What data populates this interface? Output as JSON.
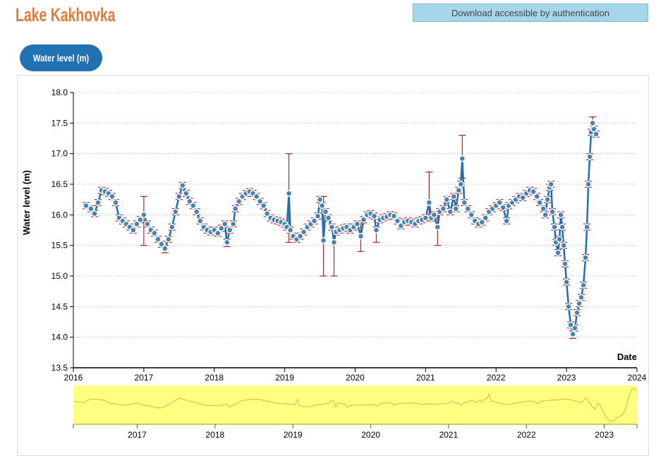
{
  "header": {
    "title": "Lake Kakhovka",
    "download_label": "Download accessible by authentication"
  },
  "tabs": [
    {
      "label": "Water level (m)",
      "active": true
    }
  ],
  "colors": {
    "title": "#e07b39",
    "point": "#4682b4",
    "line": "#1f6fb2",
    "error": "#b22222",
    "context_bg": "#ffff80",
    "context_line": "#c8c85a"
  },
  "chart_data": {
    "type": "line",
    "xlabel": "Date",
    "ylabel": "Water level (m)",
    "xlim": [
      2016,
      2024
    ],
    "ylim": [
      13.5,
      18.0
    ],
    "yticks": [
      "13.5",
      "14.0",
      "14.5",
      "15.0",
      "15.5",
      "16.0",
      "16.5",
      "17.0",
      "17.5",
      "18.0"
    ],
    "xticks": [
      "2016",
      "2017",
      "2018",
      "2019",
      "2020",
      "2021",
      "2022",
      "2023",
      "2024"
    ],
    "context_xlim": [
      2016.18,
      2023.42
    ],
    "context_xticks": [
      "2017",
      "2018",
      "2019",
      "2020",
      "2021",
      "2022",
      "2023"
    ],
    "grid": true,
    "points": [
      [
        2016.18,
        16.15
      ],
      [
        2016.25,
        16.1
      ],
      [
        2016.3,
        16.02
      ],
      [
        2016.35,
        16.2
      ],
      [
        2016.4,
        16.4
      ],
      [
        2016.45,
        16.38
      ],
      [
        2016.5,
        16.35
      ],
      [
        2016.55,
        16.3
      ],
      [
        2016.6,
        16.2
      ],
      [
        2016.65,
        15.95
      ],
      [
        2016.7,
        15.9
      ],
      [
        2016.75,
        15.85
      ],
      [
        2016.8,
        15.8
      ],
      [
        2016.85,
        15.75
      ],
      [
        2016.9,
        15.85
      ],
      [
        2016.95,
        15.92
      ],
      [
        2017.0,
        16.0
      ],
      [
        2017.05,
        15.85
      ],
      [
        2017.1,
        15.75
      ],
      [
        2017.15,
        15.7
      ],
      [
        2017.2,
        15.6
      ],
      [
        2017.25,
        15.52
      ],
      [
        2017.3,
        15.45
      ],
      [
        2017.35,
        15.6
      ],
      [
        2017.4,
        15.8
      ],
      [
        2017.45,
        16.05
      ],
      [
        2017.5,
        16.3
      ],
      [
        2017.55,
        16.48
      ],
      [
        2017.6,
        16.35
      ],
      [
        2017.65,
        16.22
      ],
      [
        2017.7,
        16.15
      ],
      [
        2017.75,
        16.05
      ],
      [
        2017.8,
        15.9
      ],
      [
        2017.85,
        15.8
      ],
      [
        2017.9,
        15.75
      ],
      [
        2017.95,
        15.72
      ],
      [
        2018.0,
        15.75
      ],
      [
        2018.05,
        15.7
      ],
      [
        2018.1,
        15.78
      ],
      [
        2018.15,
        15.85
      ],
      [
        2018.18,
        15.55
      ],
      [
        2018.22,
        15.75
      ],
      [
        2018.27,
        15.85
      ],
      [
        2018.3,
        16.1
      ],
      [
        2018.35,
        16.22
      ],
      [
        2018.4,
        16.3
      ],
      [
        2018.45,
        16.35
      ],
      [
        2018.5,
        16.38
      ],
      [
        2018.55,
        16.35
      ],
      [
        2018.6,
        16.3
      ],
      [
        2018.65,
        16.22
      ],
      [
        2018.7,
        16.15
      ],
      [
        2018.75,
        16.02
      ],
      [
        2018.8,
        15.95
      ],
      [
        2018.85,
        15.92
      ],
      [
        2018.9,
        15.9
      ],
      [
        2018.95,
        15.88
      ],
      [
        2019.0,
        15.85
      ],
      [
        2019.03,
        15.8
      ],
      [
        2019.06,
        16.35
      ],
      [
        2019.08,
        15.75
      ],
      [
        2019.12,
        15.65
      ],
      [
        2019.17,
        15.6
      ],
      [
        2019.22,
        15.65
      ],
      [
        2019.27,
        15.72
      ],
      [
        2019.32,
        15.8
      ],
      [
        2019.37,
        15.85
      ],
      [
        2019.42,
        15.9
      ],
      [
        2019.47,
        15.98
      ],
      [
        2019.5,
        16.25
      ],
      [
        2019.53,
        16.15
      ],
      [
        2019.55,
        15.58
      ],
      [
        2019.58,
        16.05
      ],
      [
        2019.62,
        15.95
      ],
      [
        2019.67,
        15.8
      ],
      [
        2019.7,
        15.55
      ],
      [
        2019.73,
        15.72
      ],
      [
        2019.78,
        15.75
      ],
      [
        2019.83,
        15.78
      ],
      [
        2019.88,
        15.8
      ],
      [
        2019.93,
        15.75
      ],
      [
        2019.98,
        15.8
      ],
      [
        2020.03,
        15.85
      ],
      [
        2020.08,
        15.65
      ],
      [
        2020.12,
        15.92
      ],
      [
        2020.17,
        16.0
      ],
      [
        2020.22,
        16.02
      ],
      [
        2020.27,
        15.98
      ],
      [
        2020.3,
        15.75
      ],
      [
        2020.35,
        15.92
      ],
      [
        2020.4,
        15.95
      ],
      [
        2020.45,
        15.97
      ],
      [
        2020.5,
        16.0
      ],
      [
        2020.55,
        15.98
      ],
      [
        2020.6,
        15.9
      ],
      [
        2020.65,
        15.82
      ],
      [
        2020.7,
        15.88
      ],
      [
        2020.75,
        15.9
      ],
      [
        2020.8,
        15.88
      ],
      [
        2020.85,
        15.85
      ],
      [
        2020.9,
        15.9
      ],
      [
        2020.95,
        15.92
      ],
      [
        2021.0,
        15.95
      ],
      [
        2021.05,
        16.2
      ],
      [
        2021.08,
        15.95
      ],
      [
        2021.12,
        16.0
      ],
      [
        2021.17,
        15.8
      ],
      [
        2021.2,
        16.05
      ],
      [
        2021.25,
        16.1
      ],
      [
        2021.3,
        16.25
      ],
      [
        2021.35,
        16.05
      ],
      [
        2021.4,
        16.3
      ],
      [
        2021.43,
        16.1
      ],
      [
        2021.47,
        16.4
      ],
      [
        2021.5,
        16.5
      ],
      [
        2021.52,
        16.92
      ],
      [
        2021.55,
        16.2
      ],
      [
        2021.6,
        16.1
      ],
      [
        2021.65,
        16.0
      ],
      [
        2021.7,
        15.9
      ],
      [
        2021.75,
        15.85
      ],
      [
        2021.8,
        15.88
      ],
      [
        2021.85,
        15.95
      ],
      [
        2021.9,
        16.05
      ],
      [
        2021.95,
        16.1
      ],
      [
        2022.0,
        16.15
      ],
      [
        2022.05,
        16.2
      ],
      [
        2022.1,
        16.12
      ],
      [
        2022.15,
        15.9
      ],
      [
        2022.18,
        16.15
      ],
      [
        2022.23,
        16.2
      ],
      [
        2022.28,
        16.25
      ],
      [
        2022.33,
        16.3
      ],
      [
        2022.38,
        16.28
      ],
      [
        2022.43,
        16.35
      ],
      [
        2022.48,
        16.4
      ],
      [
        2022.53,
        16.38
      ],
      [
        2022.58,
        16.3
      ],
      [
        2022.62,
        16.2
      ],
      [
        2022.67,
        16.1
      ],
      [
        2022.7,
        16.0
      ],
      [
        2022.73,
        16.25
      ],
      [
        2022.76,
        16.45
      ],
      [
        2022.78,
        16.5
      ],
      [
        2022.8,
        16.05
      ],
      [
        2022.83,
        15.8
      ],
      [
        2022.85,
        15.55
      ],
      [
        2022.88,
        15.38
      ],
      [
        2022.9,
        15.6
      ],
      [
        2022.92,
        16.0
      ],
      [
        2022.94,
        15.8
      ],
      [
        2022.96,
        15.5
      ],
      [
        2022.98,
        15.2
      ],
      [
        2023.0,
        14.9
      ],
      [
        2023.03,
        14.5
      ],
      [
        2023.06,
        14.2
      ],
      [
        2023.09,
        14.05
      ],
      [
        2023.12,
        14.15
      ],
      [
        2023.15,
        14.4
      ],
      [
        2023.18,
        14.55
      ],
      [
        2023.21,
        14.65
      ],
      [
        2023.24,
        14.85
      ],
      [
        2023.27,
        15.3
      ],
      [
        2023.29,
        15.8
      ],
      [
        2023.31,
        16.5
      ],
      [
        2023.33,
        16.95
      ],
      [
        2023.35,
        17.35
      ],
      [
        2023.37,
        17.5
      ],
      [
        2023.39,
        17.4
      ],
      [
        2023.42,
        17.32
      ]
    ],
    "error_bars": [
      [
        2019.06,
        15.55,
        17.0
      ],
      [
        2019.55,
        15.0,
        16.3
      ],
      [
        2019.7,
        15.0,
        15.8
      ],
      [
        2020.08,
        15.4,
        15.85
      ],
      [
        2021.05,
        15.9,
        16.7
      ],
      [
        2021.17,
        15.5,
        16.0
      ],
      [
        2021.52,
        16.6,
        17.3
      ],
      [
        2018.18,
        15.48,
        15.6
      ],
      [
        2017.3,
        15.38,
        15.5
      ],
      [
        2023.09,
        13.98,
        14.1
      ],
      [
        2023.37,
        17.3,
        17.6
      ],
      [
        2017.0,
        15.5,
        16.3
      ],
      [
        2020.3,
        15.55,
        15.8
      ]
    ]
  }
}
